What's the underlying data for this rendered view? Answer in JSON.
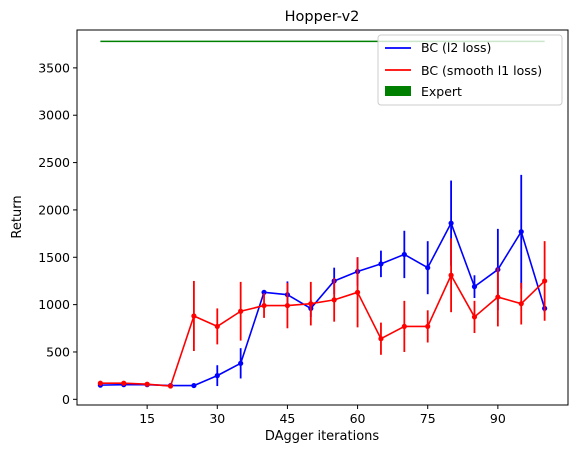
{
  "chart_data": {
    "type": "line",
    "title": "Hopper-v2",
    "xlabel": "DAgger iterations",
    "ylabel": "Return",
    "xlim": [
      0,
      105
    ],
    "ylim": [
      -60,
      3900
    ],
    "xticks": [
      15,
      30,
      45,
      60,
      75,
      90
    ],
    "yticks": [
      0,
      500,
      1000,
      1500,
      2000,
      2500,
      3000,
      3500
    ],
    "x": [
      5,
      10,
      15,
      20,
      25,
      30,
      35,
      40,
      45,
      50,
      55,
      60,
      65,
      70,
      75,
      80,
      85,
      90,
      95,
      100
    ],
    "series": [
      {
        "name": "BC (l2 loss)",
        "color": "#0000ff",
        "values": [
          150,
          155,
          155,
          145,
          145,
          250,
          380,
          1130,
          1105,
          960,
          1250,
          1350,
          1430,
          1530,
          1390,
          1860,
          1190,
          1370,
          1770,
          960
        ],
        "errors": [
          20,
          20,
          20,
          20,
          15,
          110,
          160,
          20,
          140,
          90,
          140,
          150,
          140,
          250,
          280,
          450,
          120,
          430,
          600,
          40
        ]
      },
      {
        "name": "BC (smooth l1 loss)",
        "color": "#ff0000",
        "values": [
          170,
          170,
          160,
          140,
          880,
          770,
          930,
          990,
          990,
          1010,
          1050,
          1130,
          640,
          770,
          770,
          1310,
          870,
          1080,
          1010,
          1250
        ],
        "errors": [
          25,
          20,
          15,
          15,
          370,
          190,
          310,
          130,
          240,
          230,
          230,
          370,
          170,
          270,
          170,
          390,
          170,
          310,
          220,
          420
        ]
      }
    ],
    "reference": {
      "name": "Expert",
      "color": "#008000",
      "value": 3780,
      "x_range": [
        5,
        100
      ]
    },
    "legend_position": "top-right"
  }
}
